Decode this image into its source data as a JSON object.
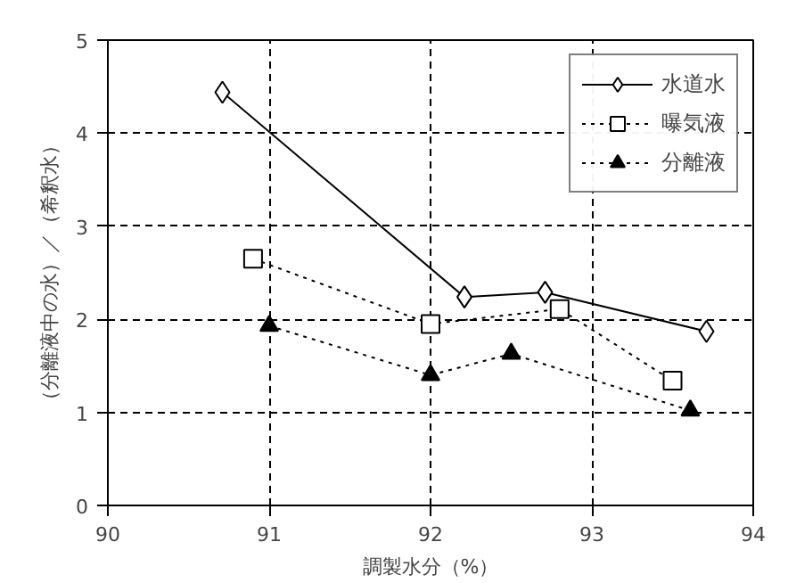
{
  "chart_data": {
    "type": "line",
    "xlabel": "調製水分（%）",
    "ylabel": "（分離液中の水）／（希釈水）",
    "xlim": [
      90,
      94
    ],
    "ylim": [
      0,
      5
    ],
    "xticks": [
      90,
      91,
      92,
      93,
      94
    ],
    "yticks": [
      0,
      1,
      2,
      3,
      4,
      5
    ],
    "grid": true,
    "legend": "top right",
    "series": [
      {
        "name": "水道水",
        "color": "#000000",
        "marker": "diamond",
        "line_style": "solid",
        "x": [
          90.71,
          92.21,
          92.71,
          93.71
        ],
        "values": [
          4.44,
          2.24,
          2.29,
          1.87
        ]
      },
      {
        "name": "曝気液",
        "color": "#000000",
        "marker": "square",
        "line_style": "dotted",
        "x": [
          90.9,
          92.0,
          92.8,
          93.5
        ],
        "values": [
          2.65,
          1.95,
          2.11,
          1.34
        ]
      },
      {
        "name": "分離液",
        "color": "#000000",
        "marker": "triangle",
        "line_style": "dotted",
        "x": [
          91.0,
          92.0,
          92.5,
          93.61
        ],
        "values": [
          1.93,
          1.4,
          1.63,
          1.02
        ]
      }
    ]
  }
}
